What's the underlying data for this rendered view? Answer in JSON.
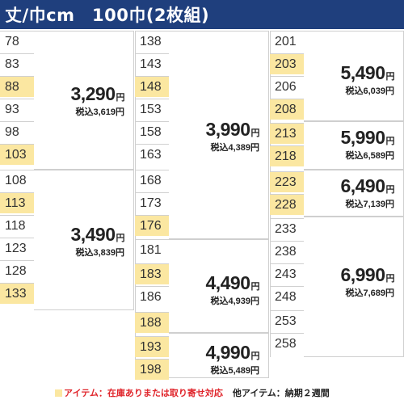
{
  "header": {
    "title": "丈/巾cm　100巾(2枚組)"
  },
  "columns": [
    {
      "lengths": [
        {
          "v": "78",
          "hl": false
        },
        {
          "v": "83",
          "hl": false
        },
        {
          "v": "88",
          "hl": true
        },
        {
          "v": "93",
          "hl": false
        },
        {
          "v": "98",
          "hl": false
        },
        {
          "v": "103",
          "hl": true
        },
        {
          "v": "108",
          "hl": false
        },
        {
          "v": "113",
          "hl": true
        },
        {
          "v": "118",
          "hl": false
        },
        {
          "v": "123",
          "hl": false
        },
        {
          "v": "128",
          "hl": false
        },
        {
          "v": "133",
          "hl": true
        }
      ]
    },
    {
      "lengths": [
        {
          "v": "138",
          "hl": false
        },
        {
          "v": "143",
          "hl": false
        },
        {
          "v": "148",
          "hl": true
        },
        {
          "v": "153",
          "hl": false
        },
        {
          "v": "158",
          "hl": false
        },
        {
          "v": "163",
          "hl": false
        },
        {
          "v": "168",
          "hl": false
        },
        {
          "v": "173",
          "hl": false
        },
        {
          "v": "176",
          "hl": true
        },
        {
          "v": "181",
          "hl": false
        },
        {
          "v": "183",
          "hl": true
        },
        {
          "v": "186",
          "hl": false
        },
        {
          "v": "188",
          "hl": true
        },
        {
          "v": "193",
          "hl": true
        },
        {
          "v": "198",
          "hl": true
        }
      ]
    },
    {
      "lengths": [
        {
          "v": "201",
          "hl": false
        },
        {
          "v": "203",
          "hl": true
        },
        {
          "v": "206",
          "hl": false
        },
        {
          "v": "208",
          "hl": true
        },
        {
          "v": "213",
          "hl": true
        },
        {
          "v": "218",
          "hl": true
        },
        {
          "v": "223",
          "hl": true
        },
        {
          "v": "228",
          "hl": true
        },
        {
          "v": "233",
          "hl": false
        },
        {
          "v": "238",
          "hl": false
        },
        {
          "v": "243",
          "hl": false
        },
        {
          "v": "248",
          "hl": false
        },
        {
          "v": "253",
          "hl": false
        },
        {
          "v": "258",
          "hl": false
        }
      ]
    }
  ],
  "prices": [
    {
      "price": "3,290",
      "yen": "円",
      "tax": "税込3,619円"
    },
    {
      "price": "3,490",
      "yen": "円",
      "tax": "税込3,839円"
    },
    {
      "price": "3,990",
      "yen": "円",
      "tax": "税込4,389円"
    },
    {
      "price": "4,490",
      "yen": "円",
      "tax": "税込4,939円"
    },
    {
      "price": "4,990",
      "yen": "円",
      "tax": "税込5,489円"
    },
    {
      "price": "5,490",
      "yen": "円",
      "tax": "税込6,039円"
    },
    {
      "price": "5,990",
      "yen": "円",
      "tax": "税込6,589円"
    },
    {
      "price": "6,490",
      "yen": "円",
      "tax": "税込7,139円"
    },
    {
      "price": "6,990",
      "yen": "円",
      "tax": "税込7,689円"
    }
  ],
  "footer": {
    "note_in_stock": "アイテム：在庫ありまたは取り寄せ対応",
    "note_other": "他アイテム：納期２週間"
  },
  "colors": {
    "header_bg": "#1f3f7d",
    "highlight": "#fbe7a1",
    "note_red": "#e0262c"
  }
}
